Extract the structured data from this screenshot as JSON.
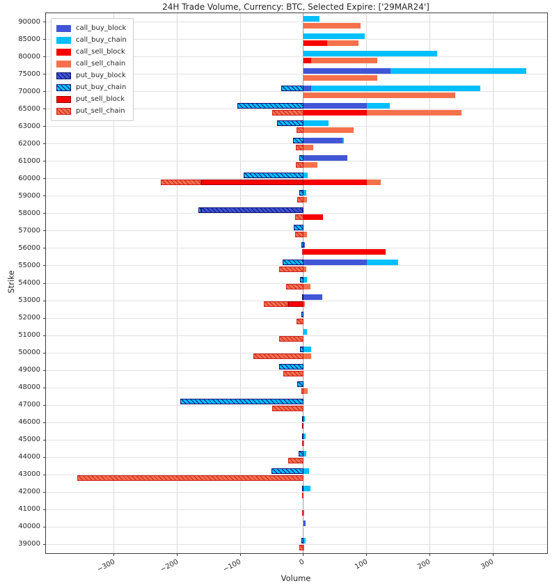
{
  "figure": {
    "title": "24H Trade Volume, Currency: BTC, Selected Expire: ['29MAR24']"
  },
  "chart_data": {
    "type": "bar",
    "orientation": "horizontal",
    "stacked": true,
    "grid": true,
    "legend_position": "upper-left",
    "title": "24H Trade Volume, Currency: BTC, Selected Expire: ['29MAR24']",
    "xlabel": "Volume",
    "ylabel": "Strike",
    "xlim": [
      -408,
      386
    ],
    "xticks": [
      {
        "v": -300,
        "label": "−300"
      },
      {
        "v": -200,
        "label": "−200"
      },
      {
        "v": -100,
        "label": "−100"
      },
      {
        "v": 0,
        "label": "0"
      },
      {
        "v": 100,
        "label": "100"
      },
      {
        "v": 200,
        "label": "200"
      },
      {
        "v": 300,
        "label": "300"
      }
    ],
    "categories": [
      "90000",
      "85000",
      "80000",
      "75000",
      "70000",
      "65000",
      "63000",
      "62000",
      "61000",
      "60000",
      "59000",
      "58000",
      "57000",
      "56000",
      "55000",
      "54000",
      "53000",
      "52000",
      "51000",
      "50000",
      "49000",
      "48000",
      "47000",
      "46000",
      "45000",
      "44000",
      "43000",
      "42000",
      "41000",
      "40000",
      "39000"
    ],
    "rows": {
      "buy": {
        "neg": [
          "put_buy_block",
          "put_buy_chain"
        ],
        "pos": [
          "call_buy_block",
          "call_buy_chain"
        ]
      },
      "sell": {
        "neg": [
          "put_sell_block",
          "put_sell_chain"
        ],
        "pos": [
          "call_sell_block",
          "call_sell_chain"
        ]
      }
    },
    "series": [
      {
        "name": "call_buy_block",
        "color": "#4156d6",
        "hatch": null,
        "edge": null,
        "values": [
          0,
          0,
          0,
          138,
          12,
          100,
          0,
          62,
          70,
          0,
          0,
          0,
          0,
          2,
          100,
          0,
          30,
          0,
          0,
          0,
          0,
          0,
          0,
          0,
          0,
          0,
          0,
          0,
          0,
          3,
          0
        ]
      },
      {
        "name": "call_buy_chain",
        "color": "#00bfff",
        "hatch": null,
        "edge": null,
        "values": [
          25,
          97,
          212,
          215,
          268,
          37,
          40,
          2,
          0,
          7,
          4,
          0,
          0,
          0,
          50,
          5,
          0,
          0,
          5,
          12,
          0,
          0,
          0,
          2,
          3,
          4,
          9,
          11,
          0,
          0,
          3
        ]
      },
      {
        "name": "call_sell_block",
        "color": "#f80000",
        "hatch": null,
        "edge": null,
        "values": [
          0,
          37,
          12,
          0,
          0,
          100,
          0,
          0,
          0,
          100,
          0,
          31,
          0,
          130,
          0,
          0,
          0,
          0,
          0,
          0,
          0,
          0,
          0,
          0,
          0,
          0,
          0,
          0,
          0,
          0,
          0
        ]
      },
      {
        "name": "call_sell_chain",
        "color": "#f4714c",
        "hatch": null,
        "edge": null,
        "values": [
          90,
          50,
          105,
          117,
          240,
          150,
          79,
          15,
          22,
          22,
          5,
          0,
          5,
          0,
          4,
          11,
          2,
          0,
          0,
          12,
          0,
          7,
          0,
          0,
          1,
          0,
          0,
          0,
          1,
          0,
          1
        ]
      },
      {
        "name": "put_buy_block",
        "color": "#4156d6",
        "hatch": "#0a1172",
        "edge": "#0a1172",
        "values": [
          0,
          0,
          0,
          0,
          0,
          0,
          0,
          0,
          0,
          0,
          0,
          -162,
          0,
          0,
          0,
          0,
          0,
          0,
          0,
          0,
          0,
          0,
          0,
          0,
          0,
          0,
          0,
          -2,
          0,
          0,
          0
        ]
      },
      {
        "name": "put_buy_chain",
        "color": "#00bfff",
        "hatch": "#0a1172",
        "edge": "#0a1172",
        "values": [
          0,
          0,
          0,
          0,
          -35,
          -105,
          -42,
          -16,
          -7,
          -95,
          -7,
          -4,
          -15,
          -3,
          -33,
          -5,
          -2,
          -3,
          0,
          -6,
          -39,
          -10,
          -195,
          -2,
          -2,
          -8,
          -51,
          0,
          0,
          0,
          -3
        ]
      },
      {
        "name": "put_sell_block",
        "color": "#f80000",
        "hatch": null,
        "edge": "#a00000",
        "values": [
          0,
          0,
          0,
          0,
          0,
          0,
          0,
          0,
          0,
          -162,
          0,
          0,
          0,
          0,
          0,
          0,
          -24,
          0,
          0,
          0,
          0,
          0,
          0,
          -2,
          0,
          0,
          0,
          0,
          0,
          0,
          0
        ]
      },
      {
        "name": "put_sell_chain",
        "color": "#f4714c",
        "hatch": "#cc1f1f",
        "edge": "#cc1f1f",
        "values": [
          0,
          0,
          0,
          0,
          0,
          -50,
          -11,
          -12,
          -12,
          -64,
          -10,
          -13,
          -13,
          -2,
          -39,
          -28,
          -39,
          -11,
          -39,
          -79,
          -32,
          -3,
          -50,
          0,
          -2,
          -24,
          -358,
          -2,
          -2,
          0,
          -7
        ]
      }
    ]
  }
}
